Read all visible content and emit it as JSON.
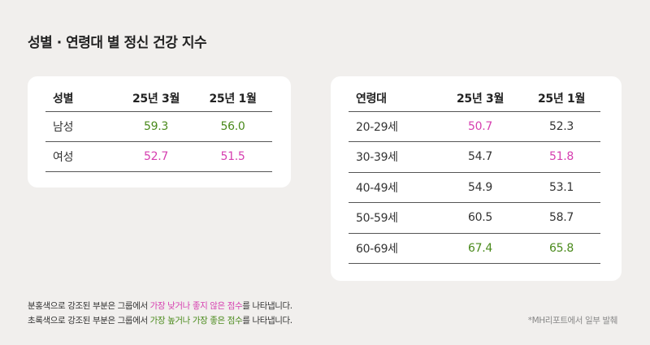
{
  "title": "성별 · 연령대 별 정신 건강 지수",
  "colors": {
    "highlight_low": "#d63fb0",
    "highlight_high": "#4a8a1c"
  },
  "gender_table": {
    "headers": [
      "성별",
      "25년 3월",
      "25년 1월"
    ],
    "rows": [
      {
        "label": "남성",
        "mar": "59.3",
        "jan": "56.0"
      },
      {
        "label": "여성",
        "mar": "52.7",
        "jan": "51.5"
      }
    ]
  },
  "age_table": {
    "headers": [
      "연령대",
      "25년 3월",
      "25년 1월"
    ],
    "rows": [
      {
        "label": "20-29세",
        "mar": "50.7",
        "jan": "52.3"
      },
      {
        "label": "30-39세",
        "mar": "54.7",
        "jan": "51.8"
      },
      {
        "label": "40-49세",
        "mar": "54.9",
        "jan": "53.1"
      },
      {
        "label": "50-59세",
        "mar": "60.5",
        "jan": "58.7"
      },
      {
        "label": "60-69세",
        "mar": "67.4",
        "jan": "65.8"
      }
    ]
  },
  "notes": {
    "line1": {
      "prefix": "분홍색으로 강조된 부분은 그룹에서 ",
      "pink1": "가장 낮거나 좋지 않은 점수",
      "suffix": "를 나타냅니다."
    },
    "line2": {
      "prefix": "초록색으로 강조된 부분은 그룹에서 ",
      "green1": "가장 높거나 가장 좋은 점수",
      "suffix": "를 나타냅니다."
    }
  },
  "source": "*MH리포트에서 일부 발췌"
}
